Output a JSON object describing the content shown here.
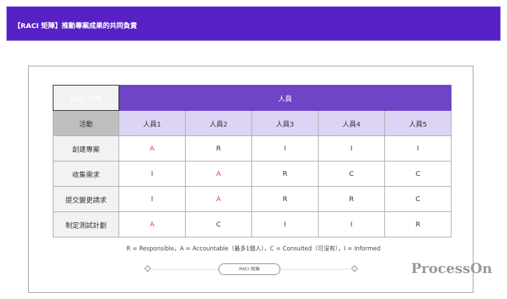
{
  "banner": {
    "title": "【RACI 矩陣】推動專案成果的共同負責"
  },
  "table": {
    "corner": "RACI 矩陣",
    "group_header": "人員",
    "activity_header": "活動",
    "people": [
      "人員1",
      "人員2",
      "人員3",
      "人員4",
      "人員5"
    ],
    "rows": [
      {
        "activity": "創建專案",
        "values": [
          "A",
          "R",
          "I",
          "I",
          "I"
        ]
      },
      {
        "activity": "收集需求",
        "values": [
          "I",
          "A",
          "R",
          "C",
          "C"
        ]
      },
      {
        "activity": "提交變更請求",
        "values": [
          "I",
          "A",
          "R",
          "R",
          "C"
        ]
      },
      {
        "activity": "制定測試計劃",
        "values": [
          "A",
          "C",
          "I",
          "I",
          "R"
        ]
      }
    ]
  },
  "legend": "R = Responsible，A = Accountable（最多1個人），C = Consulted（可沒有），I = Informed",
  "caption": "RACI 矩陣",
  "watermark": "ProcessOn",
  "colors": {
    "banner": "#5721c6",
    "header": "#6d45c6",
    "subheader": "#ddd3f5",
    "accountable": "#d94c5a"
  }
}
